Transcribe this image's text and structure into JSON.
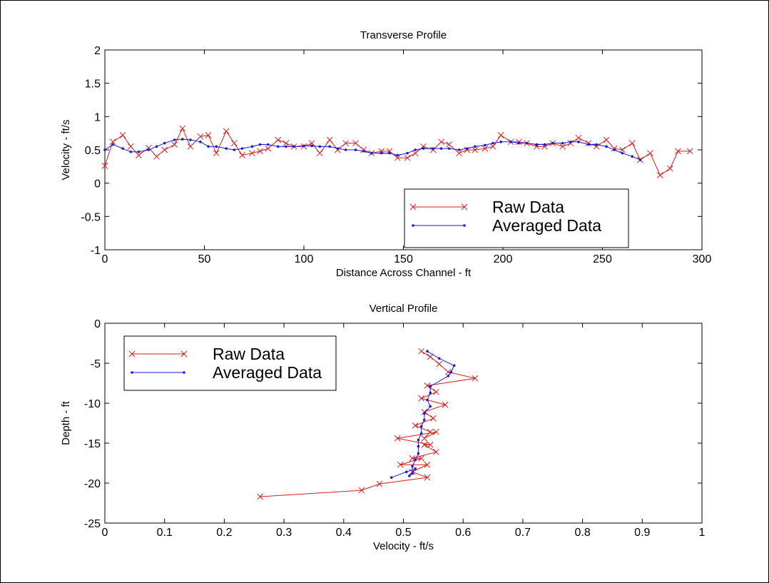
{
  "chart_data": [
    {
      "type": "line",
      "title": "Transverse Profile",
      "xlabel": "Distance Across Channel - ft",
      "ylabel": "Velocity - ft/s",
      "xlim": [
        0,
        300
      ],
      "ylim": [
        -1,
        2
      ],
      "xticks": [
        "0",
        "50",
        "100",
        "150",
        "200",
        "250",
        "300"
      ],
      "yticks": [
        "-1",
        "-0.5",
        "0",
        "0.5",
        "1",
        "1.5",
        "2"
      ],
      "grid": false,
      "legend_position": "lower-right",
      "series": [
        {
          "name": "Raw Data",
          "color": "#d02020",
          "marker": "x",
          "x": [
            0,
            4,
            9,
            13,
            17,
            22,
            26,
            30,
            35,
            39,
            43,
            48,
            52,
            56,
            61,
            65,
            69,
            74,
            78,
            82,
            87,
            91,
            95,
            100,
            104,
            108,
            113,
            117,
            121,
            126,
            130,
            134,
            139,
            143,
            147,
            152,
            156,
            160,
            165,
            169,
            173,
            178,
            182,
            186,
            191,
            195,
            199,
            204,
            208,
            212,
            217,
            221,
            225,
            230,
            234,
            238,
            243,
            247,
            252,
            256,
            260,
            265,
            269,
            274,
            279,
            284,
            288,
            294
          ],
          "y": [
            0.26,
            0.62,
            0.72,
            0.55,
            0.42,
            0.53,
            0.4,
            0.5,
            0.58,
            0.82,
            0.55,
            0.7,
            0.72,
            0.45,
            0.78,
            0.6,
            0.42,
            0.45,
            0.48,
            0.52,
            0.65,
            0.6,
            0.55,
            0.55,
            0.6,
            0.45,
            0.65,
            0.5,
            0.6,
            0.6,
            0.5,
            0.45,
            0.48,
            0.48,
            0.38,
            0.38,
            0.45,
            0.55,
            0.5,
            0.62,
            0.58,
            0.45,
            0.5,
            0.5,
            0.52,
            0.55,
            0.72,
            0.62,
            0.62,
            0.6,
            0.55,
            0.55,
            0.6,
            0.55,
            0.6,
            0.68,
            0.6,
            0.55,
            0.65,
            0.52,
            0.5,
            0.6,
            0.35,
            0.45,
            0.12,
            0.22,
            0.48,
            0.48
          ]
        },
        {
          "name": "Averaged Data",
          "color": "#1a1ad0",
          "marker": ".",
          "x": [
            0,
            4,
            9,
            13,
            17,
            22,
            26,
            30,
            35,
            39,
            43,
            48,
            52,
            56,
            61,
            65,
            69,
            74,
            78,
            82,
            87,
            91,
            95,
            100,
            104,
            108,
            113,
            117,
            121,
            126,
            130,
            134,
            139,
            143,
            147,
            152,
            156,
            160,
            165,
            169,
            173,
            178,
            182,
            186,
            191,
            195,
            199,
            204,
            208,
            212,
            217,
            221,
            225,
            230,
            234,
            238,
            243,
            247,
            252,
            256,
            260,
            265,
            269
          ],
          "y": [
            0.5,
            0.58,
            0.52,
            0.47,
            0.47,
            0.5,
            0.55,
            0.6,
            0.65,
            0.66,
            0.65,
            0.62,
            0.55,
            0.55,
            0.52,
            0.5,
            0.52,
            0.55,
            0.58,
            0.58,
            0.55,
            0.55,
            0.55,
            0.56,
            0.56,
            0.55,
            0.55,
            0.52,
            0.5,
            0.5,
            0.48,
            0.45,
            0.45,
            0.45,
            0.42,
            0.45,
            0.5,
            0.52,
            0.52,
            0.52,
            0.52,
            0.5,
            0.52,
            0.55,
            0.57,
            0.6,
            0.62,
            0.62,
            0.6,
            0.6,
            0.58,
            0.58,
            0.6,
            0.6,
            0.62,
            0.62,
            0.58,
            0.58,
            0.55,
            0.5,
            0.45,
            0.4,
            0.35
          ]
        }
      ]
    },
    {
      "type": "line",
      "title": "Vertical Profile",
      "xlabel": "Velocity - ft/s",
      "ylabel": "Depth - ft",
      "xlim": [
        0,
        1
      ],
      "ylim": [
        -25,
        0
      ],
      "xticks": [
        "0",
        "0.1",
        "0.2",
        "0.3",
        "0.4",
        "0.5",
        "0.6",
        "0.7",
        "0.8",
        "0.9",
        "1"
      ],
      "yticks": [
        "-25",
        "-20",
        "-15",
        "-10",
        "-5",
        "0"
      ],
      "grid": false,
      "legend_position": "upper-left",
      "series": [
        {
          "name": "Raw Data",
          "color": "#d02020",
          "marker": "x",
          "x": [
            0.53,
            0.545,
            0.56,
            0.575,
            0.62,
            0.54,
            0.555,
            0.53,
            0.57,
            0.535,
            0.55,
            0.52,
            0.545,
            0.535,
            0.555,
            0.49,
            0.545,
            0.535,
            0.555,
            0.515,
            0.53,
            0.495,
            0.54,
            0.515,
            0.54,
            0.46,
            0.43,
            0.26
          ],
          "y": [
            -3.5,
            -4.2,
            -5.1,
            -6.1,
            -6.9,
            -7.8,
            -8.6,
            -9.4,
            -10.2,
            -11.1,
            -11.9,
            -12.8,
            -13.6,
            -14.4,
            -13.6,
            -14.4,
            -15.2,
            -15.2,
            -16.1,
            -16.9,
            -16.9,
            -17.7,
            -17.7,
            -18.6,
            -19.3,
            -20.1,
            -20.9,
            -21.7
          ]
        },
        {
          "name": "Averaged Data",
          "color": "#1a1ad0",
          "marker": ".",
          "x": [
            0.54,
            0.56,
            0.585,
            0.58,
            0.575,
            0.545,
            0.545,
            0.54,
            0.545,
            0.535,
            0.535,
            0.53,
            0.53,
            0.525,
            0.525,
            0.525,
            0.52,
            0.515,
            0.515,
            0.51,
            0.52,
            0.505,
            0.48
          ],
          "y": [
            -3.5,
            -4.4,
            -5.3,
            -6.1,
            -6.6,
            -7.9,
            -8.7,
            -9.6,
            -10.4,
            -11.3,
            -12.1,
            -12.9,
            -13.8,
            -14.6,
            -15.4,
            -16.3,
            -17.1,
            -17.9,
            -18.8,
            -19.1,
            -18.2,
            -18.6,
            -19.3
          ]
        }
      ]
    }
  ]
}
